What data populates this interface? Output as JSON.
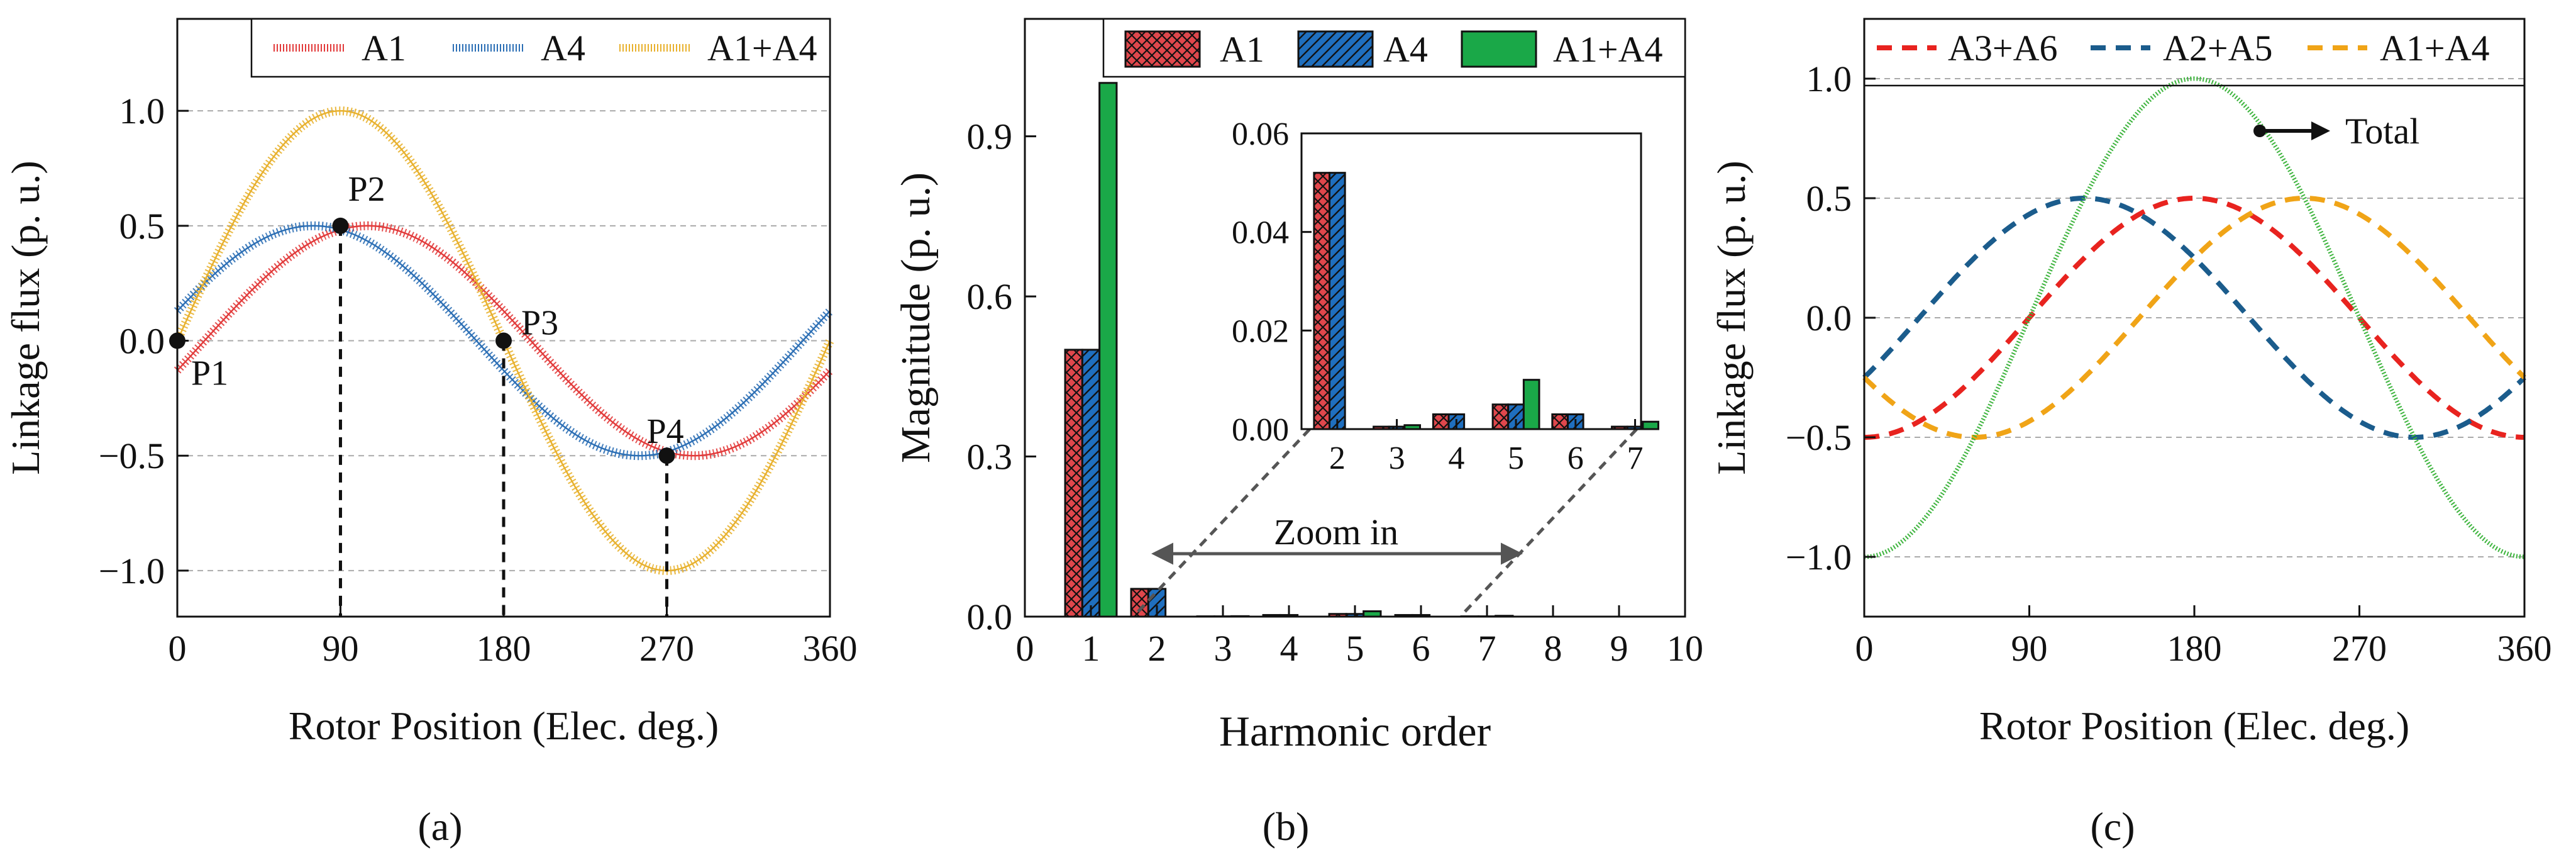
{
  "figure": {
    "panel_labels": [
      "(a)",
      "(b)",
      "(c)"
    ]
  },
  "chart_data": [
    {
      "type": "line",
      "panel": "(a)",
      "xlabel": "Rotor Position (Elec. deg.)",
      "ylabel": "Linkage flux (p. u.)",
      "xlim": [
        0,
        360
      ],
      "ylim": [
        -1.2,
        1.4
      ],
      "xticks": [
        0,
        90,
        180,
        270,
        360
      ],
      "yticks": [
        -1.0,
        -0.5,
        0.0,
        0.5,
        1.0
      ],
      "ytick_labels": [
        "−1.0",
        "−0.5",
        "0.0",
        "0.5",
        "1.0"
      ],
      "grid": "horizontal-dashed",
      "legend": "top-right",
      "series": [
        {
          "name": "A1",
          "color": "#e23b3b",
          "amplitude": 0.5,
          "phase_deg": -15,
          "step_deg": 5
        },
        {
          "name": "A4",
          "color": "#2c6fb5",
          "amplitude": 0.5,
          "phase_deg": 15,
          "step_deg": 5
        },
        {
          "name": "A1+A4",
          "color": "#e8b12e",
          "amplitude": 1.0,
          "phase_deg": 0,
          "step_deg": 5
        }
      ],
      "points": [
        {
          "label": "P1",
          "x": 0,
          "y": 0.0
        },
        {
          "label": "P2",
          "x": 90,
          "y": 0.5
        },
        {
          "label": "P3",
          "x": 180,
          "y": 0.0
        },
        {
          "label": "P4",
          "x": 270,
          "y": -0.5
        }
      ]
    },
    {
      "type": "bar",
      "panel": "(b)",
      "xlabel": "Harmonic order",
      "ylabel": "Magnitude (p. u.)",
      "xlim": [
        0,
        10
      ],
      "ylim": [
        0,
        1.12
      ],
      "xticks": [
        0,
        1,
        2,
        3,
        4,
        5,
        6,
        7,
        8,
        9,
        10
      ],
      "yticks": [
        0.0,
        0.3,
        0.6,
        0.9
      ],
      "ytick_labels": [
        "0.0",
        "0.3",
        "0.6",
        "0.9"
      ],
      "legend": "top",
      "categories": [
        1,
        2,
        3,
        4,
        5,
        6,
        7
      ],
      "series": [
        {
          "name": "A1",
          "color": "#e0474c",
          "pattern": "crosshatch",
          "values": [
            0.5,
            0.052,
            0.0005,
            0.003,
            0.005,
            0.003,
            0.0005
          ]
        },
        {
          "name": "A4",
          "color": "#1f6fbf",
          "pattern": "diagonal",
          "values": [
            0.5,
            0.052,
            0.0005,
            0.003,
            0.005,
            0.003,
            0.0005
          ]
        },
        {
          "name": "A1+A4",
          "color": "#1aa848",
          "pattern": "solid",
          "values": [
            1.0,
            0.0,
            0.0008,
            0.0,
            0.01,
            0.0,
            0.0015
          ]
        }
      ],
      "inset": {
        "xlim": [
          1.4,
          7.1
        ],
        "ylim": [
          0,
          0.06
        ],
        "xticks": [
          2,
          3,
          4,
          5,
          6,
          7
        ],
        "yticks": [
          0.0,
          0.02,
          0.04,
          0.06
        ],
        "ytick_labels": [
          "0.00",
          "0.02",
          "0.04",
          "0.06"
        ]
      },
      "annotation": "Zoom in"
    },
    {
      "type": "line",
      "panel": "(c)",
      "xlabel": "Rotor Position (Elec. deg.)",
      "ylabel": "Linkage flux (p. u.)",
      "xlim": [
        0,
        360
      ],
      "ylim": [
        -1.25,
        1.25
      ],
      "xticks": [
        0,
        90,
        180,
        270,
        360
      ],
      "yticks": [
        -1.0,
        -0.5,
        0.0,
        0.5,
        1.0
      ],
      "ytick_labels": [
        "−1.0",
        "−0.5",
        "0.0",
        "0.5",
        "1.0"
      ],
      "grid": "horizontal-dashed",
      "legend": "top",
      "series": [
        {
          "name": "A3+A6",
          "color": "#e8231f",
          "style": "dashed",
          "amplitude": 0.5,
          "phase_deg": 0
        },
        {
          "name": "A2+A5",
          "color": "#1b5c8c",
          "style": "dashed",
          "amplitude": 0.5,
          "phase_deg": 60
        },
        {
          "name": "A1+A4",
          "color": "#f0a417",
          "style": "dashed",
          "amplitude": 0.5,
          "phase_deg": -60
        },
        {
          "name": "Total",
          "color": "#3db43d",
          "style": "dotted",
          "amplitude": 1.0,
          "phase_deg": 0
        }
      ],
      "annotation": "Total"
    }
  ]
}
